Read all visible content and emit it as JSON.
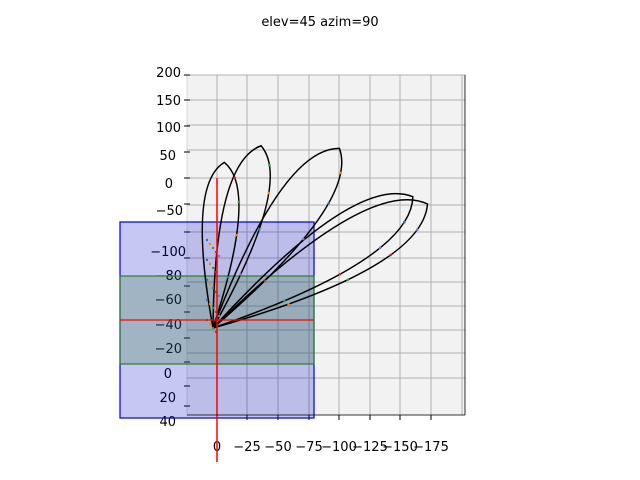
{
  "chart_data": {
    "type": "line",
    "projection": "3d",
    "title": "elev=45 azim=90",
    "xlabel": "",
    "ylabel": "",
    "zlabel": "",
    "x_ticks": [
      "0",
      "−25",
      "−50",
      "−75",
      "−100",
      "−125",
      "−150",
      "−175"
    ],
    "x_range": [
      0,
      -175
    ],
    "y_ticks": [
      "200",
      "150",
      "100",
      "50",
      "0",
      "−50"
    ],
    "z_ticks": [
      "−100",
      "−80",
      "−60",
      "−40",
      "−20",
      "0",
      "20",
      "40"
    ],
    "grid": true,
    "pane_color": "#f2f2f2",
    "series": [
      {
        "color": "#000000",
        "lobe_tip": [
          172,
          -50
        ],
        "note": ""
      },
      {
        "color": "#000000",
        "lobe_tip": [
          160,
          -36
        ]
      },
      {
        "color": "#000000",
        "lobe_tip": [
          100,
          57
        ]
      },
      {
        "color": "#000000",
        "lobe_tip": [
          36,
          62
        ]
      },
      {
        "color": "#000000",
        "lobe_tip": [
          6,
          30
        ]
      }
    ],
    "overlays": {
      "blue_box_color": "#0000cc",
      "green_box_color": "#2e7d32",
      "axis_line_color": "#ff0000"
    }
  }
}
